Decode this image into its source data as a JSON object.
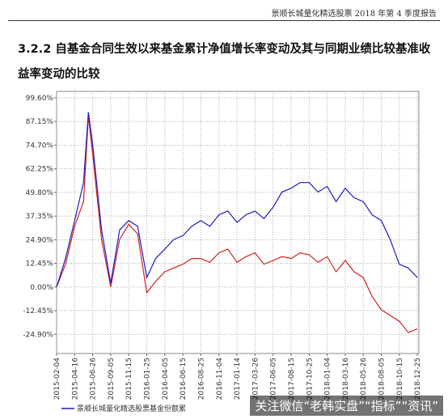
{
  "header": {
    "title": "景顺长城量化精选股票 2018 年第 4 季度报告"
  },
  "section": {
    "heading": "3.2.2 自基金合同生效以来基金累计净值增长率变动及其与同期业绩比较基准收益率变动的比较"
  },
  "watermark": "关注微信“老韩实盘”“指标”“资讯”",
  "chart_data": {
    "type": "line",
    "x": [
      "2015-02-04",
      "2015-03-11",
      "2015-04-16",
      "2015-05-21",
      "2015-06-09",
      "2015-06-26",
      "2015-07-31",
      "2015-09-05",
      "2015-10-10",
      "2015-11-15",
      "2015-12-20",
      "2016-01-25",
      "2016-02-29",
      "2016-04-05",
      "2016-05-10",
      "2016-06-15",
      "2016-07-20",
      "2016-08-25",
      "2016-09-29",
      "2016-11-04",
      "2016-12-09",
      "2017-01-14",
      "2017-02-18",
      "2017-03-26",
      "2017-04-30",
      "2017-06-05",
      "2017-07-10",
      "2017-08-15",
      "2017-09-19",
      "2017-10-25",
      "2017-11-29",
      "2018-01-04",
      "2018-02-08",
      "2018-03-16",
      "2018-04-20",
      "2018-05-26",
      "2018-06-30",
      "2018-08-05",
      "2018-09-09",
      "2018-10-15",
      "2018-11-19",
      "2018-12-25"
    ],
    "series": [
      {
        "name": "景顺长城量化精选股票基金份额累",
        "color": "#1c1cc4",
        "values": [
          0,
          15,
          35,
          55,
          92,
          75,
          30,
          2,
          30,
          35,
          32,
          5,
          15,
          20,
          25,
          27,
          32,
          35,
          32,
          38,
          40,
          34,
          38,
          40,
          36,
          42,
          50,
          52,
          55,
          55,
          50,
          53,
          45,
          52,
          47,
          45,
          38,
          35,
          25,
          12,
          10,
          5
        ]
      },
      {
        "color": "#d42020",
        "values": [
          0,
          12,
          32,
          45,
          90,
          70,
          25,
          0,
          25,
          33,
          28,
          -3,
          3,
          8,
          10,
          12,
          15,
          15,
          13,
          18,
          20,
          13,
          16,
          18,
          12,
          14,
          16,
          15,
          18,
          17,
          13,
          16,
          8,
          14,
          8,
          5,
          -5,
          -12,
          -15,
          -18,
          -24,
          -22
        ]
      }
    ],
    "xlim": [
      "2015-02-04",
      "2018-12-31"
    ],
    "xticks": [
      "2015-02-04",
      "2015-04-16",
      "2015-06-26",
      "2015-09-05",
      "2015-11-15",
      "2016-01-25",
      "2016-04-05",
      "2016-06-15",
      "2016-08-25",
      "2016-11-04",
      "2017-01-14",
      "2017-03-26",
      "2017-06-05",
      "2017-08-15",
      "2017-10-25",
      "2018-01-04",
      "2018-03-16",
      "2018-05-26",
      "2018-08-05",
      "2018-10-15",
      "2018-12-25"
    ],
    "ylim": [
      -35,
      103
    ],
    "yticks": [
      {
        "value": 99.6,
        "label": "99.60%"
      },
      {
        "value": 87.15,
        "label": "87.15%"
      },
      {
        "value": 74.7,
        "label": "74.70%"
      },
      {
        "value": 62.25,
        "label": "62.25%"
      },
      {
        "value": 49.8,
        "label": "49.80%"
      },
      {
        "value": 37.35,
        "label": "37.35%"
      },
      {
        "value": 24.9,
        "label": "24.90%"
      },
      {
        "value": 12.45,
        "label": "12.45%"
      },
      {
        "value": 0,
        "label": "0.00%"
      },
      {
        "value": -12.45,
        "label": "-12.45%"
      },
      {
        "value": -24.9,
        "label": "-24.90%"
      }
    ]
  }
}
